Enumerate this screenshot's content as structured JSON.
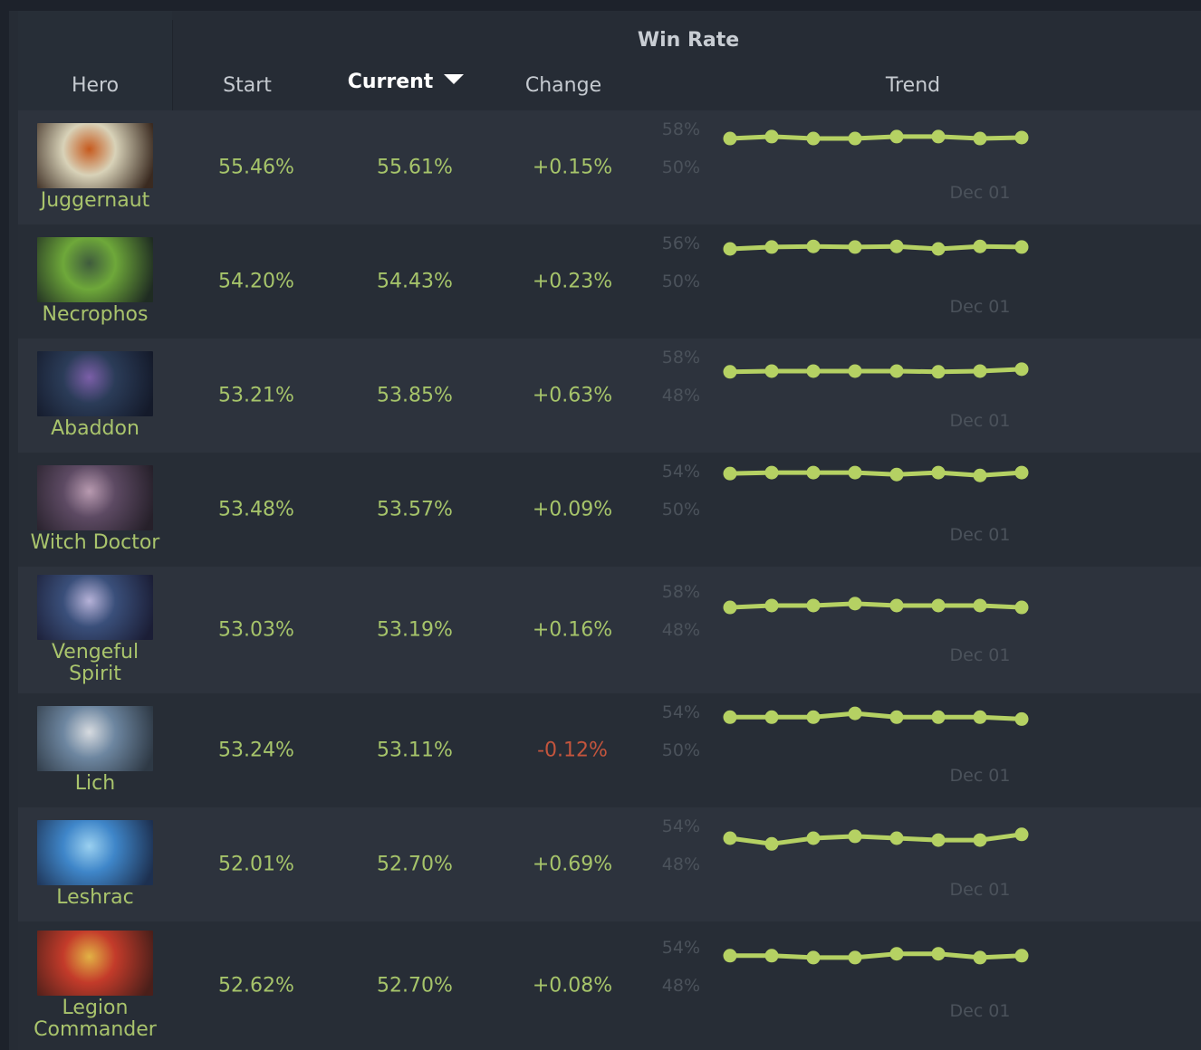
{
  "header": {
    "group_title": "Win Rate",
    "columns": {
      "hero": "Hero",
      "start": "Start",
      "current": "Current",
      "change": "Change",
      "trend": "Trend"
    },
    "sorted_column": "Current",
    "sort_direction": "descending",
    "sort_icon": "caret-down-icon"
  },
  "colors": {
    "positive": "#a6c46a",
    "negative": "#c4553d",
    "line": "#b5d163",
    "background": "#262c35"
  },
  "rows": [
    {
      "hero": "Juggernaut",
      "start": "55.46%",
      "current": "55.61%",
      "change": "+0.15%",
      "trend": {
        "max_label": "58%",
        "min_label": "50%",
        "max": 58,
        "min": 50,
        "x_label": "Dec 01",
        "values": [
          55.9,
          56.3,
          55.9,
          55.9,
          56.3,
          56.3,
          55.9,
          56.1
        ]
      }
    },
    {
      "hero": "Necrophos",
      "start": "54.20%",
      "current": "54.43%",
      "change": "+0.23%",
      "trend": {
        "max_label": "56%",
        "min_label": "50%",
        "max": 56,
        "min": 50,
        "x_label": "Dec 01",
        "values": [
          55.0,
          55.3,
          55.4,
          55.3,
          55.4,
          55.0,
          55.4,
          55.3
        ]
      }
    },
    {
      "hero": "Abaddon",
      "start": "53.21%",
      "current": "53.85%",
      "change": "+0.63%",
      "trend": {
        "max_label": "58%",
        "min_label": "48%",
        "max": 58,
        "min": 48,
        "x_label": "Dec 01",
        "values": [
          54.0,
          54.2,
          54.2,
          54.2,
          54.2,
          54.0,
          54.2,
          54.7
        ]
      }
    },
    {
      "hero": "Witch Doctor",
      "start": "53.48%",
      "current": "53.57%",
      "change": "+0.09%",
      "trend": {
        "max_label": "54%",
        "min_label": "50%",
        "max": 54,
        "min": 50,
        "x_label": "Dec 01",
        "values": [
          53.7,
          53.8,
          53.8,
          53.8,
          53.6,
          53.8,
          53.5,
          53.8
        ]
      }
    },
    {
      "hero": "Vengeful Spirit",
      "start": "53.03%",
      "current": "53.19%",
      "change": "+0.16%",
      "trend": {
        "max_label": "58%",
        "min_label": "48%",
        "max": 58,
        "min": 48,
        "x_label": "Dec 01",
        "values": [
          53.7,
          54.2,
          54.2,
          54.7,
          54.2,
          54.2,
          54.2,
          53.7
        ]
      }
    },
    {
      "hero": "Lich",
      "start": "53.24%",
      "current": "53.11%",
      "change": "-0.12%",
      "negative": true,
      "trend": {
        "max_label": "54%",
        "min_label": "50%",
        "max": 54,
        "min": 50,
        "x_label": "Dec 01",
        "values": [
          53.4,
          53.4,
          53.4,
          53.8,
          53.4,
          53.4,
          53.4,
          53.2
        ]
      }
    },
    {
      "hero": "Leshrac",
      "start": "52.01%",
      "current": "52.70%",
      "change": "+0.69%",
      "trend": {
        "max_label": "54%",
        "min_label": "48%",
        "max": 54,
        "min": 48,
        "x_label": "Dec 01",
        "values": [
          52.0,
          51.1,
          52.0,
          52.3,
          52.0,
          51.7,
          51.7,
          52.6
        ]
      }
    },
    {
      "hero": "Legion Commander",
      "start": "52.62%",
      "current": "52.70%",
      "change": "+0.08%",
      "trend": {
        "max_label": "54%",
        "min_label": "48%",
        "max": 54,
        "min": 48,
        "x_label": "Dec 01",
        "values": [
          52.6,
          52.6,
          52.3,
          52.3,
          52.9,
          52.9,
          52.3,
          52.6
        ]
      }
    }
  ]
}
